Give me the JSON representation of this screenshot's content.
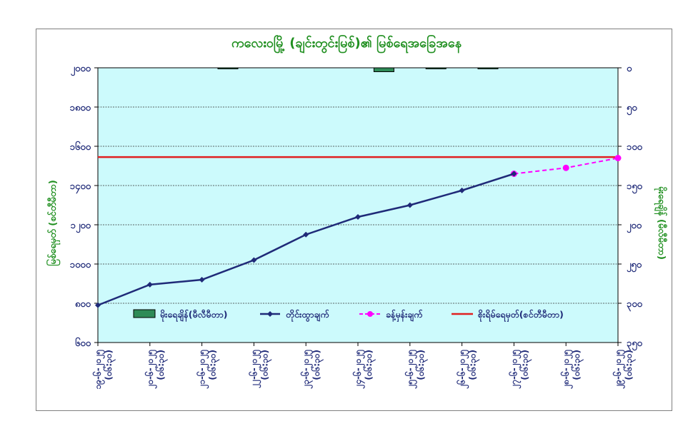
{
  "chart_data": {
    "type": "line",
    "title": "ကလေးဝမြို့ (ချင်းတွင်းမြစ်)၏ မြစ်ရေအခြေအနေ",
    "ylabel_left": "မြစ်ရေမှတ် (စင်တီမီတာ)",
    "ylabel_right": "မိုးရေချိန် (မီလီမီတာ)",
    "y_left_ticks": [
      "၂၀၀၀",
      "၁၈၀၀",
      "၁၆၀၀",
      "၁၄၀၀",
      "၁၂၀၀",
      "၁၀၀၀",
      "၈၀၀",
      "၆၀၀"
    ],
    "y_right_ticks": [
      "၀",
      "၅၀",
      "၁၀၀",
      "၁၅၀",
      "၂၀၀",
      "၂၅၀",
      "၃၀၀",
      "၃၅၀"
    ],
    "ylim_left": [
      600,
      2000
    ],
    "ylim_right": [
      0,
      350
    ],
    "x_dates": [
      "၁၉-၆-၂၀၂၅",
      "၂၀-၆-၂၀၂၅",
      "၂၁-၆-၂၀၂၅",
      "၂၂-၆-၂၀၂၅",
      "၂၃-၆-၂၀၂၅",
      "၂၄-၆-၂၀၂၅",
      "၂၅-၆-၂၀၂၅",
      "၂၆-၆-၂၀၂၅",
      "၂၇-၆-၂၀၂၅",
      "၂၈-၆-၂၀၂၅",
      "၂၉-၆-၂၀၂၅"
    ],
    "x_time": "(၀၆:၃၀)",
    "series": [
      {
        "name": "မိုးရေချိန်(မီလီမီတာ)",
        "kind": "bar",
        "axis": "right",
        "color": "#2e8b57",
        "values": [
          0,
          0,
          1,
          0,
          0,
          5,
          0.5,
          0.5,
          0,
          0,
          0
        ]
      },
      {
        "name": "တိုင်းထွာချက်",
        "kind": "line",
        "axis": "left",
        "color": "#1f2a78",
        "values": [
          790,
          895,
          920,
          1020,
          1150,
          1240,
          1300,
          1375,
          1460,
          null,
          null
        ]
      },
      {
        "name": "ခန့်မှန်းချက်",
        "kind": "dashed",
        "axis": "left",
        "color": "#ff00ff",
        "values": [
          null,
          null,
          null,
          null,
          null,
          null,
          null,
          null,
          1460,
          1490,
          1540
        ]
      },
      {
        "name": "စိုးရိမ်ရေမှတ်(စင်တီမီတာ)",
        "kind": "hline",
        "axis": "left",
        "color": "#e02020",
        "value": 1545
      }
    ],
    "grid": true,
    "legend": "bottom"
  }
}
